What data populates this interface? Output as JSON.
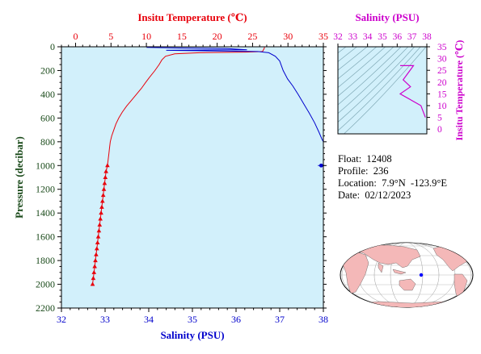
{
  "chart_data": [
    {
      "type": "line",
      "top_axis": {
        "label": "Insitu Temperature (℃)",
        "range": [
          -2,
          35
        ],
        "ticks": [
          0,
          5,
          10,
          15,
          20,
          25,
          30,
          35
        ],
        "color": "#e8000b"
      },
      "bottom_axis": {
        "label": "Salinity (PSU)",
        "range": [
          32,
          38
        ],
        "ticks": [
          32,
          33,
          34,
          35,
          36,
          37,
          38
        ],
        "color": "#0000cc"
      },
      "left_axis": {
        "label": "Pressure (decibar)",
        "range": [
          0,
          2200
        ],
        "reversed": true,
        "ticks": [
          0,
          200,
          400,
          600,
          800,
          1000,
          1200,
          1400,
          1600,
          1800,
          2000,
          2200
        ],
        "color": "#1a4a1a"
      },
      "background": "#d2f0fb",
      "series": [
        {
          "quantity": "temperature",
          "color": "#e8000b",
          "x": [
            26.7,
            26.6,
            26.4,
            24.0,
            17.5,
            14.0,
            12.7,
            12.2,
            11.8,
            11.2,
            10.4,
            9.9,
            9.3,
            8.6,
            7.9,
            7.2,
            6.6,
            6.1,
            5.7,
            5.4,
            5.1,
            4.9,
            4.8,
            4.7,
            4.6,
            4.5
          ],
          "pressure": [
            5,
            20,
            40,
            45,
            50,
            60,
            80,
            110,
            150,
            200,
            260,
            300,
            350,
            400,
            450,
            500,
            550,
            600,
            650,
            700,
            750,
            800,
            850,
            900,
            950,
            1000
          ]
        },
        {
          "quantity": "temperature_deep_samples",
          "color": "#e8000b",
          "marker": "triangle",
          "x": [
            4.5,
            4.3,
            4.2,
            4.1,
            4.0,
            3.9,
            3.8,
            3.7,
            3.6,
            3.5,
            3.4,
            3.3,
            3.2,
            3.1,
            3.0,
            2.9,
            2.8,
            2.7,
            2.6,
            2.5,
            2.4
          ],
          "pressure": [
            1000,
            1050,
            1100,
            1150,
            1200,
            1250,
            1300,
            1350,
            1400,
            1450,
            1500,
            1550,
            1600,
            1650,
            1700,
            1750,
            1800,
            1850,
            1900,
            1950,
            2000
          ]
        },
        {
          "quantity": "salinity",
          "color": "#0000cc",
          "x": [
            33.95,
            34.7,
            35.8,
            36.25,
            34.4,
            36.5,
            36.75,
            36.9,
            37.0,
            37.08,
            37.18,
            37.3,
            37.42,
            37.55,
            37.68,
            37.8,
            37.9,
            37.97,
            38.0
          ],
          "pressure": [
            5,
            10,
            15,
            25,
            30,
            40,
            50,
            80,
            120,
            200,
            270,
            330,
            400,
            480,
            560,
            640,
            720,
            780,
            800
          ]
        },
        {
          "quantity": "salinity_deep_sample",
          "color": "#0000cc",
          "marker": "circle",
          "x": [
            37.95
          ],
          "pressure": [
            1000
          ]
        }
      ]
    },
    {
      "type": "line",
      "title": "Salinity (PSU)",
      "color": "#cc00cc",
      "x_axis": {
        "range": [
          32,
          38
        ],
        "ticks": [
          32,
          33,
          34,
          35,
          36,
          37,
          38
        ]
      },
      "y_axis": {
        "label": "Insitu Temperature (℃)",
        "range": [
          -2,
          35
        ],
        "ticks": [
          0,
          5,
          10,
          15,
          20,
          25,
          30,
          35
        ]
      },
      "series": [
        {
          "x": [
            36.2,
            37.1,
            36.4,
            36.9,
            36.2,
            37.6,
            37.9
          ],
          "y": [
            27,
            27,
            21,
            18,
            15,
            10,
            5
          ]
        }
      ]
    }
  ],
  "info": {
    "float_line": "Float:  12408",
    "profile_line": "Profile:  236",
    "location_line": "Location:  7.9°N  -123.9°E",
    "date_line": "Date:  02/12/2023"
  },
  "map": {
    "marker_color": "#0000ff",
    "land_color": "#f4b8b8",
    "ocean_color": "#ffffff"
  }
}
